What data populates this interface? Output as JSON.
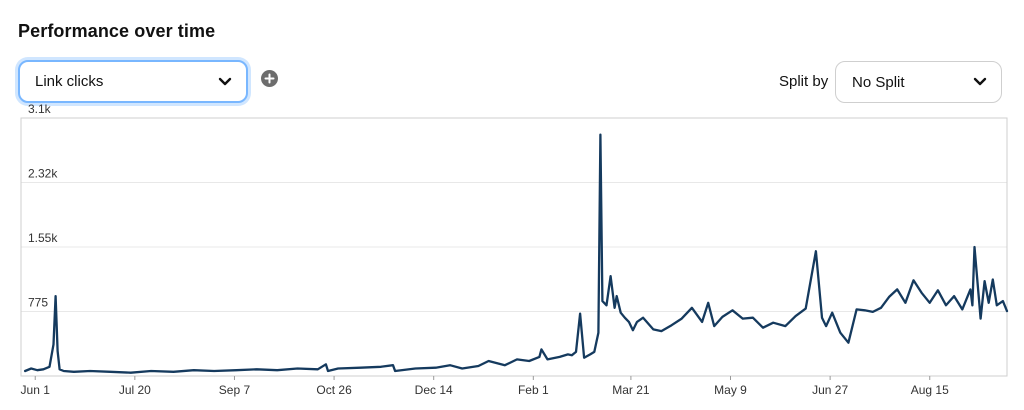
{
  "header": {
    "title": "Performance over time"
  },
  "metric_select": {
    "value": "Link clicks",
    "icon": "chevron-down-icon"
  },
  "add_button": {
    "icon": "plus-circle-icon"
  },
  "split": {
    "label": "Split by",
    "value": "No Split",
    "icon": "chevron-down-icon"
  },
  "colors": {
    "line": "#153a5e",
    "focus": "#79b7ff",
    "grid": "#e8e8e8",
    "border": "#cfcfcf"
  },
  "chart_data": {
    "type": "line",
    "title": "",
    "xlabel": "",
    "ylabel": "",
    "ylim": [
      0,
      3100
    ],
    "yticks": [
      {
        "value": 775,
        "label": "775"
      },
      {
        "value": 1550,
        "label": "1.55k"
      },
      {
        "value": 2325,
        "label": "2.32k"
      },
      {
        "value": 3100,
        "label": "3.1k"
      }
    ],
    "x_start": "2020-05-25",
    "x_end": "2021-09-22",
    "xticks": [
      {
        "date": "2020-06-01",
        "label": "Jun 1"
      },
      {
        "date": "2020-07-20",
        "label": "Jul 20"
      },
      {
        "date": "2020-09-07",
        "label": "Sep 7"
      },
      {
        "date": "2020-10-26",
        "label": "Oct 26"
      },
      {
        "date": "2020-12-14",
        "label": "Dec 14"
      },
      {
        "date": "2021-02-01",
        "label": "Feb 1"
      },
      {
        "date": "2021-03-21",
        "label": "Mar 21"
      },
      {
        "date": "2021-05-09",
        "label": "May 9"
      },
      {
        "date": "2021-06-27",
        "label": "Jun 27"
      },
      {
        "date": "2021-08-15",
        "label": "Aug 15"
      }
    ],
    "grid": true,
    "series": [
      {
        "name": "",
        "x": [
          "2020-05-27",
          "2020-05-30",
          "2020-06-02",
          "2020-06-05",
          "2020-06-08",
          "2020-06-10",
          "2020-06-11",
          "2020-06-12",
          "2020-06-13",
          "2020-06-15",
          "2020-06-20",
          "2020-06-28",
          "2020-07-08",
          "2020-07-18",
          "2020-07-28",
          "2020-08-08",
          "2020-08-18",
          "2020-08-28",
          "2020-09-08",
          "2020-09-18",
          "2020-09-28",
          "2020-10-08",
          "2020-10-18",
          "2020-10-22",
          "2020-10-23",
          "2020-10-28",
          "2020-11-08",
          "2020-11-18",
          "2020-11-24",
          "2020-11-25",
          "2020-12-05",
          "2020-12-15",
          "2020-12-22",
          "2020-12-28",
          "2021-01-05",
          "2021-01-10",
          "2021-01-18",
          "2021-01-24",
          "2021-01-30",
          "2021-02-04",
          "2021-02-05",
          "2021-02-08",
          "2021-02-14",
          "2021-02-18",
          "2021-02-20",
          "2021-02-22",
          "2021-02-24",
          "2021-02-26",
          "2021-03-01",
          "2021-03-03",
          "2021-03-05",
          "2021-03-06",
          "2021-03-07",
          "2021-03-09",
          "2021-03-11",
          "2021-03-13",
          "2021-03-14",
          "2021-03-16",
          "2021-03-18",
          "2021-03-20",
          "2021-03-22",
          "2021-03-24",
          "2021-03-27",
          "2021-04-01",
          "2021-04-05",
          "2021-04-10",
          "2021-04-15",
          "2021-04-20",
          "2021-04-25",
          "2021-04-28",
          "2021-05-01",
          "2021-05-05",
          "2021-05-10",
          "2021-05-15",
          "2021-05-20",
          "2021-05-25",
          "2021-05-30",
          "2021-06-05",
          "2021-06-10",
          "2021-06-15",
          "2021-06-20",
          "2021-06-23",
          "2021-06-24",
          "2021-06-25",
          "2021-06-28",
          "2021-07-02",
          "2021-07-06",
          "2021-07-10",
          "2021-07-14",
          "2021-07-18",
          "2021-07-22",
          "2021-07-26",
          "2021-07-30",
          "2021-08-03",
          "2021-08-07",
          "2021-08-11",
          "2021-08-15",
          "2021-08-19",
          "2021-08-23",
          "2021-08-27",
          "2021-08-31",
          "2021-09-04",
          "2021-09-05",
          "2021-09-06",
          "2021-09-09",
          "2021-09-11",
          "2021-09-13",
          "2021-09-15",
          "2021-09-17",
          "2021-09-20",
          "2021-09-22"
        ],
        "y": [
          60,
          90,
          70,
          80,
          110,
          380,
          960,
          300,
          80,
          60,
          50,
          60,
          50,
          40,
          60,
          50,
          70,
          60,
          70,
          80,
          70,
          90,
          80,
          140,
          60,
          90,
          100,
          110,
          130,
          60,
          90,
          100,
          130,
          90,
          120,
          180,
          130,
          200,
          180,
          230,
          320,
          200,
          230,
          260,
          250,
          290,
          750,
          220,
          260,
          290,
          520,
          2900,
          900,
          850,
          1200,
          820,
          960,
          760,
          700,
          650,
          550,
          650,
          700,
          560,
          540,
          610,
          690,
          820,
          650,
          880,
          600,
          710,
          790,
          690,
          700,
          580,
          640,
          600,
          720,
          810,
          1500,
          700,
          650,
          600,
          760,
          520,
          400,
          800,
          790,
          770,
          820,
          950,
          1040,
          880,
          1150,
          1000,
          880,
          1030,
          850,
          960,
          800,
          1040,
          850,
          1550,
          690,
          1140,
          880,
          1160,
          850,
          900,
          780
        ]
      }
    ]
  }
}
